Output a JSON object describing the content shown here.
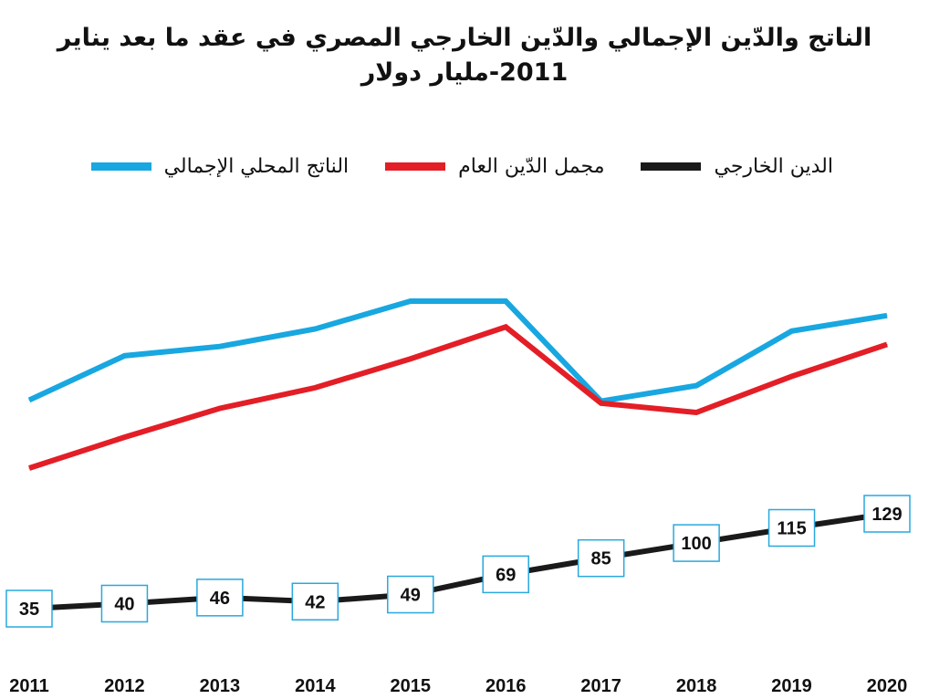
{
  "chart_data": {
    "type": "line",
    "title_line1": "الناتج والدّين الإجمالي والدّين الخارجي المصري في عقد ما بعد يناير",
    "title_line2": "2011-مليار دولار",
    "x": [
      "2011",
      "2012",
      "2013",
      "2014",
      "2015",
      "2016",
      "2017",
      "2018",
      "2019",
      "2020"
    ],
    "series": [
      {
        "name": "الناتج المحلي الإجمالي",
        "color": "#18a7e0",
        "values": [
          236,
          279,
          288,
          305,
          332,
          332,
          235,
          250,
          303,
          318
        ]
      },
      {
        "name": "مجمل الدّين العام",
        "color": "#e31e26",
        "values": [
          170,
          200,
          228,
          248,
          276,
          307,
          233,
          224,
          259,
          290
        ]
      },
      {
        "name": "الدين الخارجي",
        "color": "#1a1a1a",
        "values": [
          35,
          40,
          46,
          42,
          49,
          69,
          85,
          100,
          115,
          129
        ],
        "labels": [
          "35",
          "40",
          "46",
          "42",
          "49",
          "69",
          "85",
          "100",
          "115",
          "129"
        ]
      }
    ],
    "grid": false,
    "legend_position": "top"
  }
}
